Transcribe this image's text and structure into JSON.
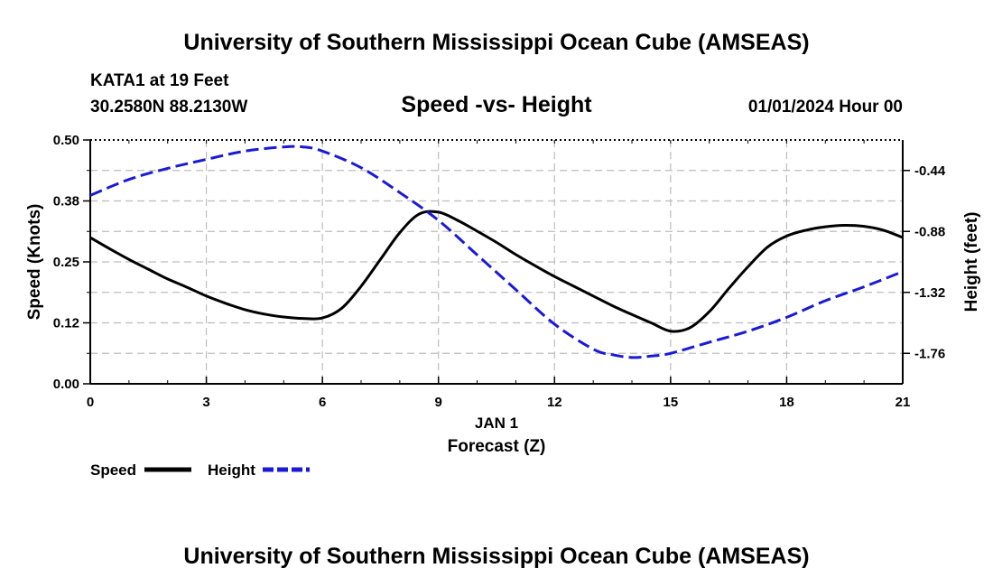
{
  "header": {
    "title": "University of Southern Mississippi Ocean Cube (AMSEAS)",
    "station": "KATA1 at 19 Feet",
    "coords": "30.2580N  88.2130W",
    "chart_title": "Speed -vs- Height",
    "datetime": "01/01/2024 Hour 00"
  },
  "footer": {
    "title": "University of Southern Mississippi Ocean Cube (AMSEAS)"
  },
  "chart_data": {
    "type": "line",
    "title": "Speed -vs- Height",
    "xlabel": "Forecast (Z)",
    "xlabel_date": "JAN 1",
    "ylabel": "Speed (Knots)",
    "y2label": "Height (feet)",
    "xlim": [
      0,
      21
    ],
    "ylim": [
      0,
      0.5
    ],
    "y2lim": [
      -1.98,
      -0.22
    ],
    "grid": true,
    "x_ticks": [
      0,
      3,
      6,
      9,
      12,
      15,
      18,
      21
    ],
    "x_tick_labels": [
      "0",
      "3",
      "6",
      "9",
      "12",
      "15",
      "18",
      "21"
    ],
    "y_ticks": [
      0.0,
      0.125,
      0.25,
      0.375,
      0.5
    ],
    "y_tick_labels": [
      "0.00",
      "0.12",
      "0.25",
      "0.38",
      "0.50"
    ],
    "y2_ticks": [
      -0.44,
      -0.88,
      -1.32,
      -1.76
    ],
    "y2_tick_labels": [
      "-0.44",
      "-0.88",
      "-1.32",
      "-1.76"
    ],
    "legend": [
      {
        "label": "Speed",
        "color": "#000000",
        "style": "solid"
      },
      {
        "label": "Height",
        "color": "#1a1ad6",
        "style": "dashed"
      }
    ],
    "series": [
      {
        "name": "Speed",
        "axis": "left",
        "color": "#000000",
        "style": "solid",
        "x": [
          0,
          0.5,
          1,
          1.5,
          2,
          2.5,
          3,
          3.5,
          4,
          4.5,
          5,
          5.5,
          6,
          6.5,
          7,
          7.5,
          8,
          8.5,
          9,
          9.5,
          10,
          10.5,
          11,
          11.5,
          12,
          12.5,
          13,
          13.5,
          14,
          14.5,
          15,
          15.5,
          16,
          16.5,
          17,
          17.5,
          18,
          18.5,
          19,
          19.5,
          20,
          20.5,
          21
        ],
        "values": [
          0.3,
          0.277,
          0.255,
          0.235,
          0.215,
          0.198,
          0.18,
          0.165,
          0.152,
          0.143,
          0.137,
          0.134,
          0.135,
          0.155,
          0.2,
          0.255,
          0.31,
          0.348,
          0.352,
          0.335,
          0.313,
          0.29,
          0.265,
          0.242,
          0.22,
          0.2,
          0.18,
          0.16,
          0.142,
          0.125,
          0.108,
          0.115,
          0.148,
          0.195,
          0.24,
          0.28,
          0.303,
          0.315,
          0.322,
          0.325,
          0.323,
          0.315,
          0.3
        ]
      },
      {
        "name": "Height",
        "axis": "right",
        "color": "#1a1ad6",
        "style": "dashed",
        "x": [
          0,
          1,
          2,
          3,
          4,
          5,
          5.5,
          6,
          7,
          8,
          9,
          10,
          11,
          12,
          13,
          13.5,
          14,
          14.5,
          15,
          16,
          17,
          18,
          19,
          20,
          21
        ],
        "values": [
          -0.62,
          -0.505,
          -0.425,
          -0.36,
          -0.3,
          -0.27,
          -0.27,
          -0.3,
          -0.42,
          -0.6,
          -0.8,
          -1.05,
          -1.3,
          -1.55,
          -1.73,
          -1.77,
          -1.79,
          -1.78,
          -1.76,
          -1.68,
          -1.6,
          -1.5,
          -1.38,
          -1.28,
          -1.17
        ]
      }
    ]
  }
}
